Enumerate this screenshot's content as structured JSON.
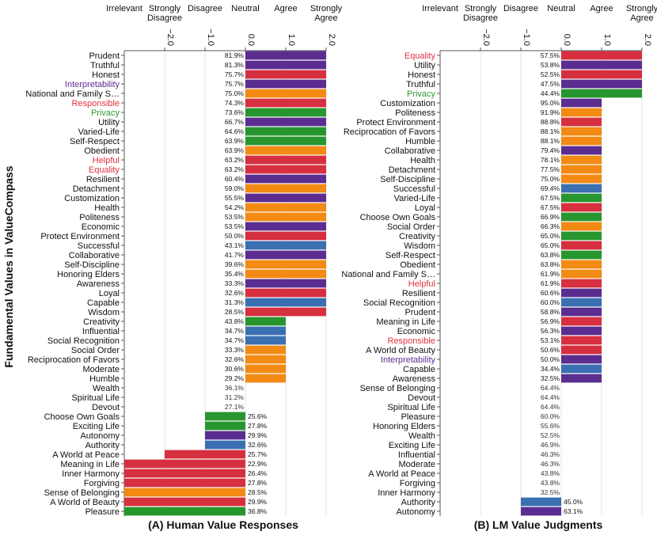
{
  "y_axis_label": "Fundamental Values in ValueCompass",
  "x_ticks": [
    "−2.0",
    "−1.0",
    "0.0",
    "1.0",
    "2.0"
  ],
  "scale_labels": [
    "Irrelevant",
    "Strongly\nDisagree",
    "Disagree",
    "Neutral",
    "Agree",
    "Strongly\nAgree"
  ],
  "colors": {
    "red": "#d62f3f",
    "purple": "#5b2d90",
    "orange": "#f28a14",
    "green": "#27962e",
    "blue": "#3a6fb1",
    "label_default": "#111111",
    "label_red": "#e0313f",
    "label_purple": "#5b2d90",
    "label_green": "#2e9a2e",
    "grid": "#e3e3e3",
    "axis": "#555555"
  },
  "chart_data": [
    {
      "type": "bar",
      "orientation": "horizontal",
      "title": "(A) Human Value Responses",
      "xlim": [
        -3.0,
        2.0
      ],
      "x_ticks": [
        -2.0,
        -1.0,
        0.0,
        1.0,
        2.0
      ],
      "ylabel": "Fundamental Values in ValueCompass",
      "categories": [
        "Prudent",
        "Truthful",
        "Honest",
        "Interpretability",
        "National and Family S…",
        "Responsible",
        "Privacy",
        "Utility",
        "Varied-Life",
        "Self-Respect",
        "Obedient",
        "Helpful",
        "Equality",
        "Resilient",
        "Detachment",
        "Customization",
        "Health",
        "Politeness",
        "Economic",
        "Protect Environment",
        "Successful",
        "Collaborative",
        "Self-Discipline",
        "Honoring Elders",
        "Awareness",
        "Loyal",
        "Capable",
        "Wisdom",
        "Creativity",
        "Influential",
        "Social Recognition",
        "Social Order",
        "Reciprocation of Favors",
        "Moderate",
        "Humble",
        "Wealth",
        "Spiritual Life",
        "Devout",
        "Choose Own Goals",
        "Exciting Life",
        "Autonomy",
        "Authority",
        "A World at Peace",
        "Meaning in Life",
        "Inner Harmony",
        "Forgiving",
        "Sense of Belonging",
        "A World of Beauty",
        "Pleasure"
      ],
      "values": [
        2,
        2,
        2,
        2,
        2,
        2,
        2,
        2,
        2,
        2,
        2,
        2,
        2,
        2,
        2,
        2,
        2,
        2,
        2,
        2,
        2,
        2,
        2,
        2,
        2,
        2,
        2,
        2,
        1,
        1,
        1,
        1,
        1,
        1,
        1,
        0,
        0,
        0,
        -1,
        -1,
        -1,
        -1,
        -2,
        -3,
        -3,
        -3,
        -3,
        -3,
        -3
      ],
      "percent_labels": [
        "81.9%",
        "81.3%",
        "75.7%",
        "75.7%",
        "75.0%",
        "74.3%",
        "73.6%",
        "66.7%",
        "64.6%",
        "63.9%",
        "63.9%",
        "63.2%",
        "63.2%",
        "60.4%",
        "59.0%",
        "55.5%",
        "54.2%",
        "53.5%",
        "53.5%",
        "50.0%",
        "43.1%",
        "41.7%",
        "39.6%",
        "35.4%",
        "33.3%",
        "32.6%",
        "31.3%",
        "28.5%",
        "43.8%",
        "34.7%",
        "34.7%",
        "33.3%",
        "32.6%",
        "30.6%",
        "29.2%",
        "36.1%",
        "31.2%",
        "27.1%",
        "25.6%",
        "27.8%",
        "29.9%",
        "32.6%",
        "25.7%",
        "22.9%",
        "26.4%",
        "27.8%",
        "28.5%",
        "29.9%",
        "36.8%"
      ],
      "bar_colors": [
        "purple",
        "purple",
        "red",
        "purple",
        "orange",
        "red",
        "green",
        "purple",
        "green",
        "green",
        "orange",
        "red",
        "red",
        "purple",
        "orange",
        "purple",
        "orange",
        "orange",
        "purple",
        "red",
        "blue",
        "purple",
        "orange",
        "orange",
        "purple",
        "red",
        "blue",
        "red",
        "green",
        "blue",
        "blue",
        "orange",
        "orange",
        "orange",
        "orange",
        "orange",
        "orange",
        "orange",
        "green",
        "green",
        "purple",
        "blue",
        "red",
        "red",
        "red",
        "red",
        "orange",
        "red",
        "green"
      ],
      "label_colors": [
        "default",
        "default",
        "default",
        "purple",
        "default",
        "red",
        "green",
        "default",
        "default",
        "default",
        "default",
        "red",
        "red",
        "default",
        "default",
        "default",
        "default",
        "default",
        "default",
        "default",
        "default",
        "default",
        "default",
        "default",
        "default",
        "default",
        "default",
        "default",
        "default",
        "default",
        "default",
        "default",
        "default",
        "default",
        "default",
        "default",
        "default",
        "default",
        "default",
        "default",
        "default",
        "default",
        "default",
        "default",
        "default",
        "default",
        "default",
        "default",
        "default"
      ]
    },
    {
      "type": "bar",
      "orientation": "horizontal",
      "title": "(B) LM Value Judgments",
      "xlim": [
        -3.0,
        2.0
      ],
      "x_ticks": [
        -2.0,
        -1.0,
        0.0,
        1.0,
        2.0
      ],
      "categories": [
        "Equality",
        "Utility",
        "Honest",
        "Truthful",
        "Privacy",
        "Customization",
        "Politeness",
        "Protect Environment",
        "Reciprocation of Favors",
        "Humble",
        "Collaborative",
        "Health",
        "Detachment",
        "Self-Discipline",
        "Successful",
        "Varied-Life",
        "Loyal",
        "Choose Own Goals",
        "Social Order",
        "Creativity",
        "Wisdom",
        "Self-Respect",
        "Obedient",
        "National and Family S…",
        "Helpful",
        "Resilient",
        "Social Recognition",
        "Prudent",
        "Meaning in Life",
        "Economic",
        "Responsible",
        "A World of Beauty",
        "Interpretability",
        "Capable",
        "Awareness",
        "Sense of Belonging",
        "Devout",
        "Spiritual Life",
        "Pleasure",
        "Honoring Elders",
        "Wealth",
        "Exciting Life",
        "Influential",
        "Moderate",
        "A World at Peace",
        "Forgiving",
        "Inner Harmony",
        "Authority",
        "Autonomy"
      ],
      "values": [
        2,
        2,
        2,
        2,
        2,
        1,
        1,
        1,
        1,
        1,
        1,
        1,
        1,
        1,
        1,
        1,
        1,
        1,
        1,
        1,
        1,
        1,
        1,
        1,
        1,
        1,
        1,
        1,
        1,
        1,
        1,
        1,
        1,
        1,
        1,
        0,
        0,
        0,
        0,
        0,
        0,
        0,
        0,
        0,
        0,
        0,
        0,
        -1,
        -1
      ],
      "percent_labels": [
        "57.5%",
        "53.8%",
        "52.5%",
        "47.5%",
        "44.4%",
        "95.0%",
        "91.9%",
        "88.8%",
        "88.1%",
        "88.1%",
        "79.4%",
        "78.1%",
        "77.5%",
        "75.0%",
        "69.4%",
        "67.5%",
        "67.5%",
        "66.9%",
        "66.3%",
        "65.0%",
        "65.0%",
        "63.8%",
        "63.8%",
        "61.9%",
        "61.9%",
        "60.6%",
        "60.0%",
        "58.8%",
        "56.9%",
        "56.3%",
        "53.1%",
        "50.6%",
        "50.0%",
        "34.4%",
        "32.5%",
        "64.4%",
        "64.4%",
        "64.4%",
        "60.0%",
        "55.6%",
        "52.5%",
        "46.9%",
        "46.3%",
        "46.3%",
        "43.8%",
        "43.8%",
        "32.5%",
        "45.0%",
        "63.1%"
      ],
      "bar_colors": [
        "red",
        "purple",
        "red",
        "purple",
        "green",
        "purple",
        "orange",
        "red",
        "orange",
        "orange",
        "purple",
        "orange",
        "orange",
        "orange",
        "blue",
        "green",
        "red",
        "green",
        "orange",
        "green",
        "red",
        "green",
        "orange",
        "orange",
        "red",
        "purple",
        "blue",
        "purple",
        "red",
        "purple",
        "red",
        "red",
        "purple",
        "blue",
        "purple",
        "orange",
        "orange",
        "orange",
        "green",
        "orange",
        "orange",
        "green",
        "blue",
        "orange",
        "red",
        "red",
        "red",
        "blue",
        "purple"
      ],
      "label_colors": [
        "red",
        "default",
        "default",
        "default",
        "green",
        "default",
        "default",
        "default",
        "default",
        "default",
        "default",
        "default",
        "default",
        "default",
        "default",
        "default",
        "default",
        "default",
        "default",
        "default",
        "default",
        "default",
        "default",
        "default",
        "red",
        "default",
        "default",
        "default",
        "default",
        "default",
        "red",
        "default",
        "purple",
        "default",
        "default",
        "default",
        "default",
        "default",
        "default",
        "default",
        "default",
        "default",
        "default",
        "default",
        "default",
        "default",
        "default",
        "default",
        "default"
      ]
    }
  ]
}
